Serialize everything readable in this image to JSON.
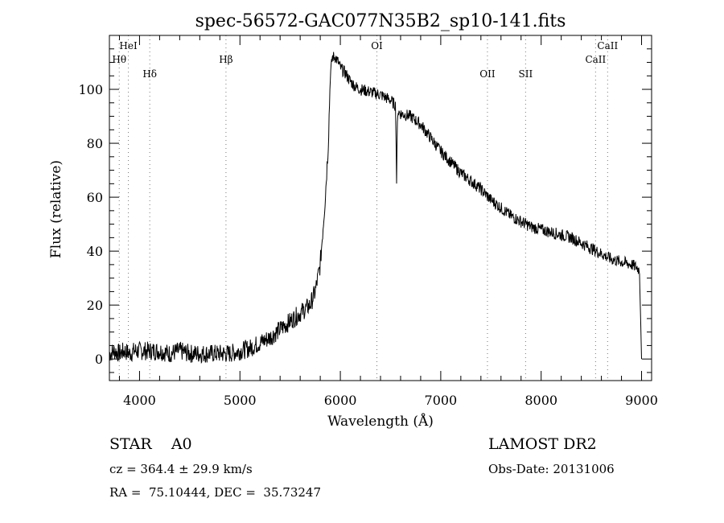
{
  "chart_data": {
    "type": "line",
    "title": "spec-56572-GAC077N35B2_sp10-141.fits",
    "xlabel": "Wavelength (Å)",
    "ylabel": "Flux (relative)",
    "xlim": [
      3700,
      9100
    ],
    "ylim": [
      -8,
      120
    ],
    "xticks": [
      4000,
      5000,
      6000,
      7000,
      8000,
      9000
    ],
    "yticks": [
      0,
      20,
      40,
      60,
      80,
      100
    ],
    "grid": false,
    "lines": [
      {
        "name": "HeI",
        "x": 3889,
        "row": 1
      },
      {
        "name": "Hθ",
        "x": 3798,
        "row": 2
      },
      {
        "name": "Hδ",
        "x": 4102,
        "row": 3
      },
      {
        "name": "Hβ",
        "x": 4861,
        "row": 2
      },
      {
        "name": "OI",
        "x": 6364,
        "row": 1
      },
      {
        "name": "OII",
        "x": 7465,
        "row": 3
      },
      {
        "name": "SII",
        "x": 7845,
        "row": 3
      },
      {
        "name": "CaII",
        "x": 8662,
        "row": 1
      },
      {
        "name": "CaII",
        "x": 8542,
        "row": 2
      }
    ],
    "series": [
      {
        "x": [
          3700,
          3750,
          3800,
          3850,
          3900,
          3950,
          4000,
          4100,
          4200,
          4300,
          4400,
          4500,
          4600,
          4700,
          4800,
          4900,
          5000,
          5100,
          5200,
          5300,
          5400,
          5500,
          5600,
          5700,
          5750,
          5800,
          5850,
          5880,
          5900,
          5920,
          5950,
          5980,
          6000,
          6050,
          6100,
          6150,
          6200,
          6300,
          6400,
          6500,
          6550,
          6560,
          6570,
          6600,
          6700,
          6800,
          6900,
          7000,
          7100,
          7200,
          7300,
          7400,
          7500,
          7600,
          7700,
          7800,
          7900,
          8000,
          8100,
          8200,
          8300,
          8400,
          8500,
          8600,
          8700,
          8800,
          8900,
          8950,
          8980,
          9000
        ],
        "y": [
          2,
          3,
          2,
          3,
          2,
          3,
          3,
          3,
          3,
          2,
          3,
          2,
          2,
          2,
          2,
          2,
          3,
          4,
          6,
          8,
          11,
          14,
          17,
          20,
          25,
          35,
          60,
          80,
          105,
          112,
          112,
          110,
          108,
          106,
          103,
          101,
          100,
          99,
          98,
          96,
          94,
          66,
          92,
          91,
          90,
          87,
          82,
          77,
          73,
          69,
          66,
          63,
          59,
          56,
          53,
          51,
          49,
          48,
          47,
          46,
          45,
          43,
          41,
          39,
          37,
          36,
          35,
          34,
          33,
          0
        ]
      }
    ]
  },
  "info": {
    "left_line1": "STAR    A0",
    "left_line2": "cz = 364.4 ± 29.9 km/s",
    "left_line3": "RA =  75.10444, DEC =  35.73247",
    "right_line1": "LAMOST DR2",
    "right_line2": "Obs-Date: 20131006"
  }
}
